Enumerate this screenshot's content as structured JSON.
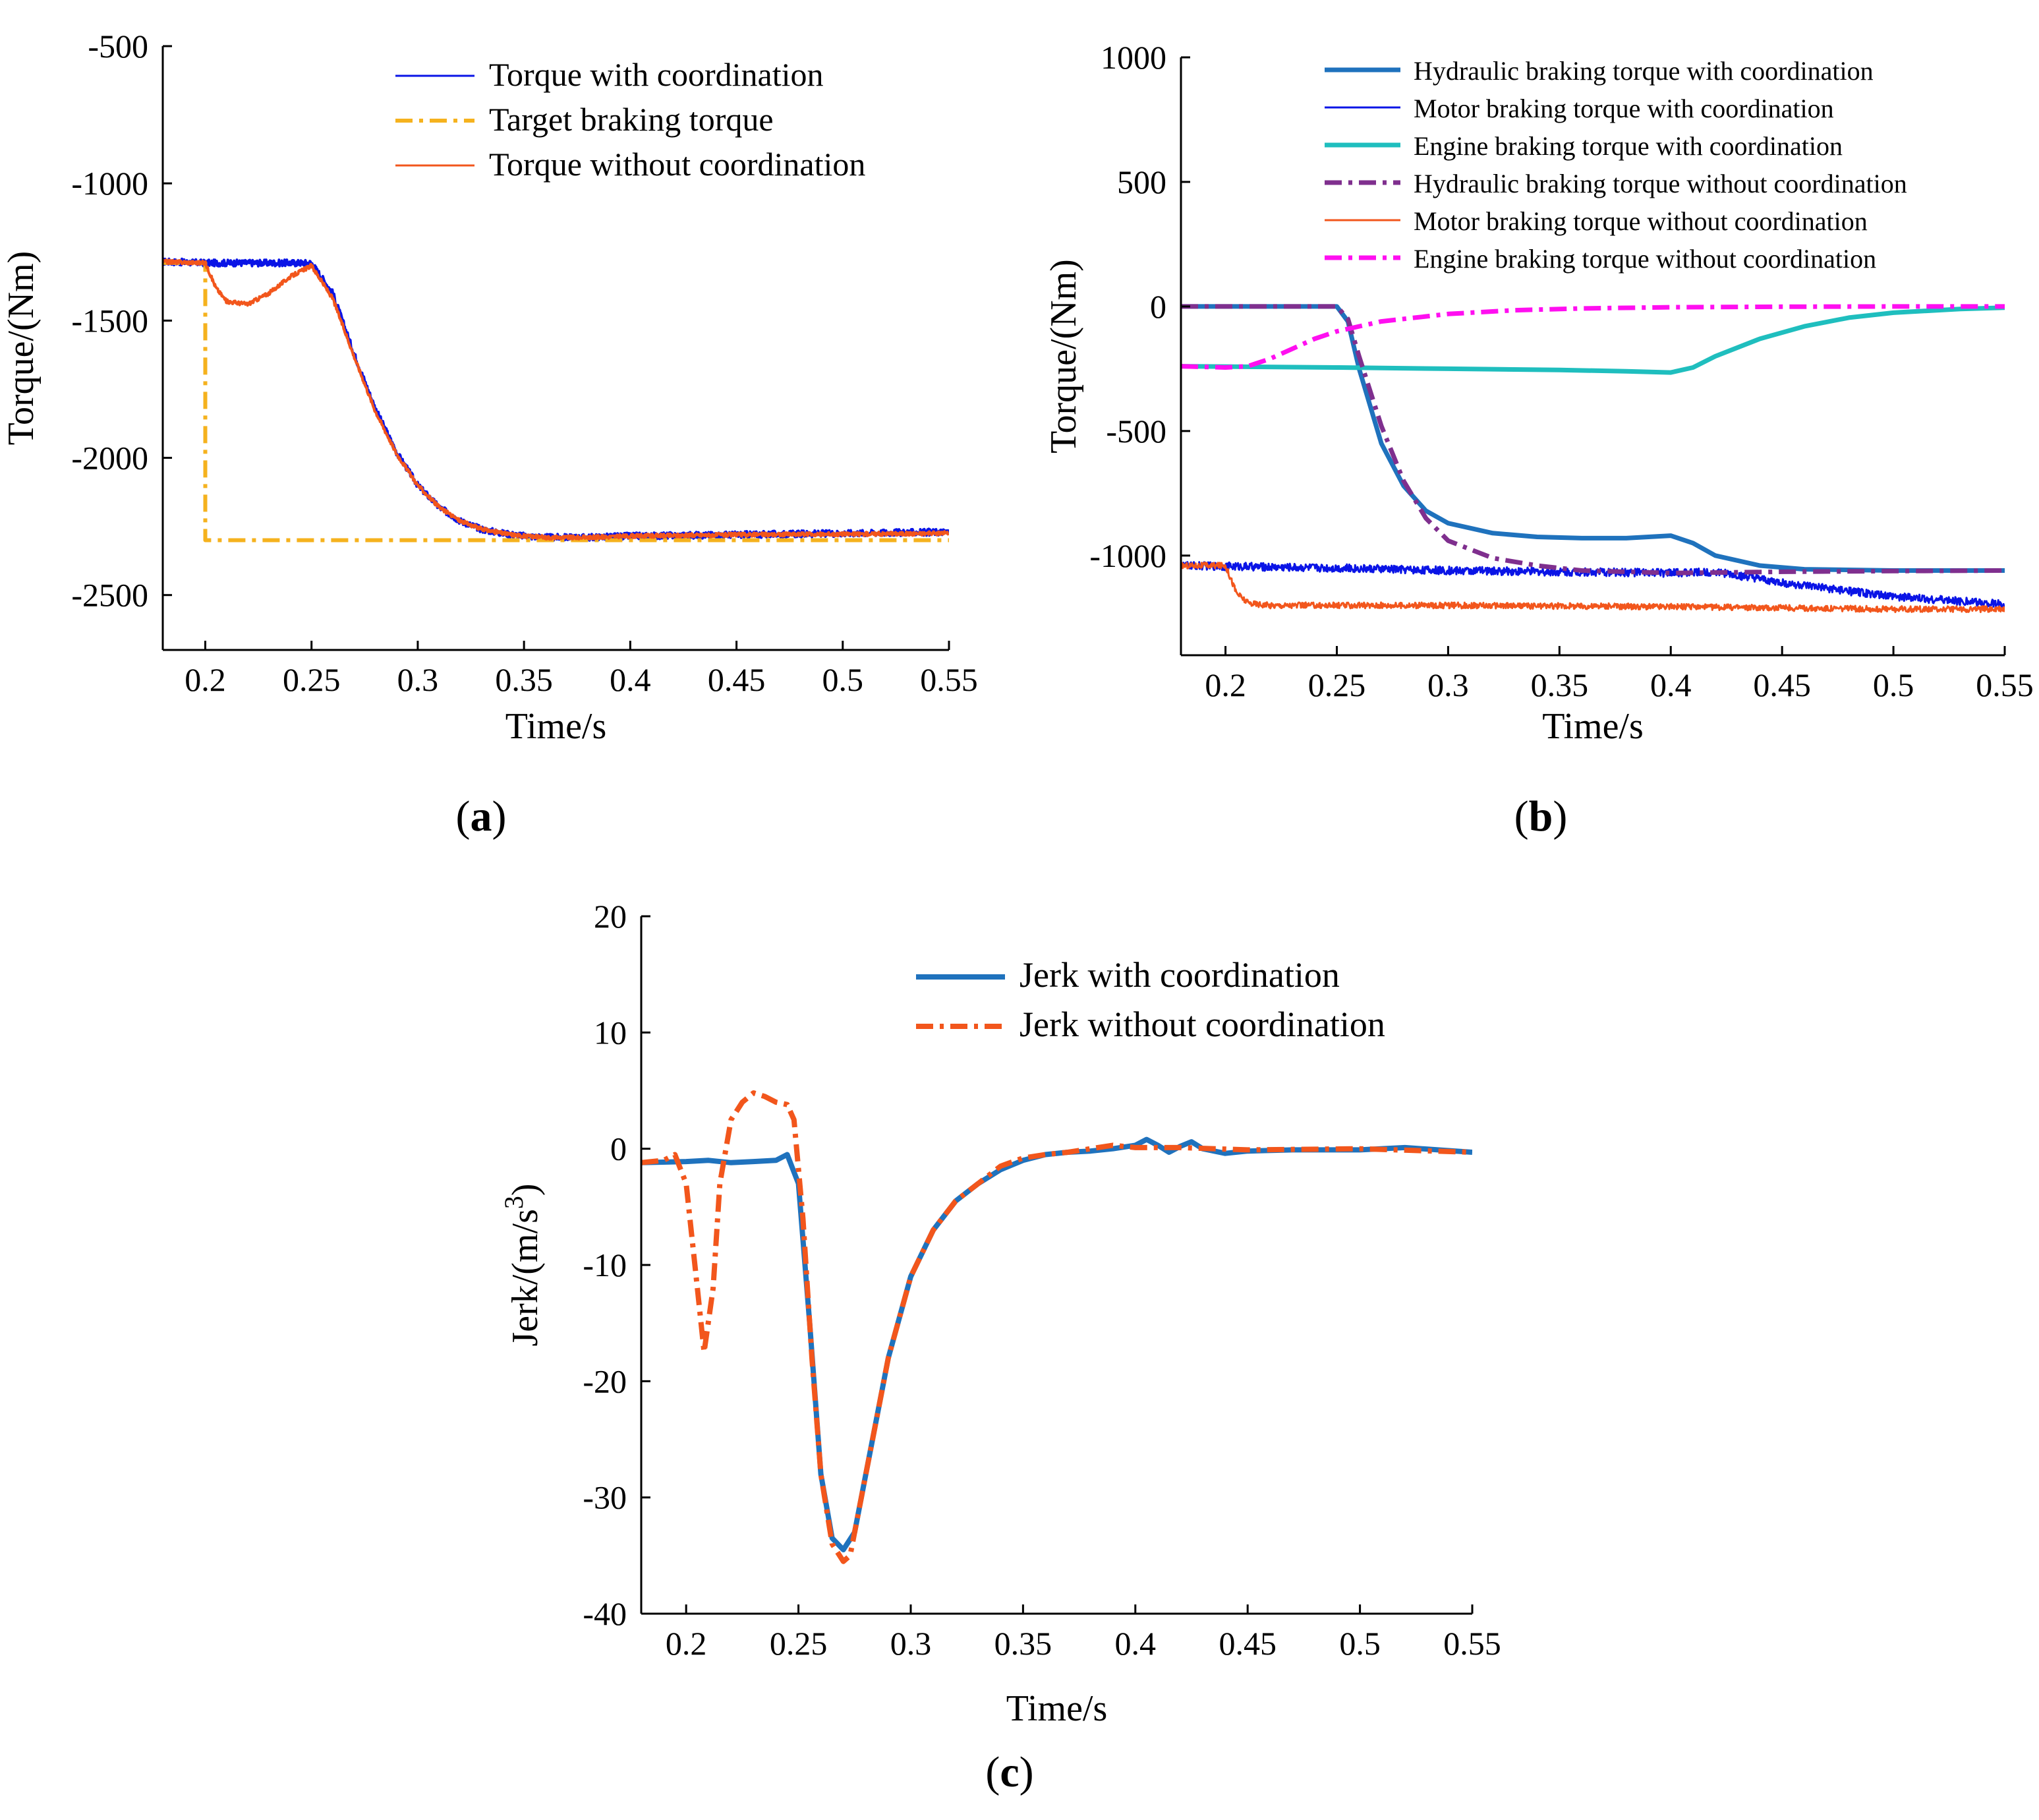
{
  "chart_data": [
    {
      "id": "a",
      "panel_label": "a",
      "type": "line",
      "xlabel": "Time/s",
      "ylabel": "Torque/(Nm)",
      "xlim": [
        0.18,
        0.55
      ],
      "ylim": [
        -2700,
        -500
      ],
      "xticks": [
        0.2,
        0.25,
        0.3,
        0.35,
        0.4,
        0.45,
        0.5,
        0.55
      ],
      "xtick_labels": [
        "0.2",
        "0.25",
        "0.3",
        "0.35",
        "0.4",
        "0.45",
        "0.5",
        "0.55"
      ],
      "yticks": [
        -2500,
        -2000,
        -1500,
        -1000,
        -500
      ],
      "ytick_labels": [
        "-2500",
        "-2000",
        "-1500",
        "-1000",
        "-500"
      ],
      "legend_position": "top-right",
      "series": [
        {
          "name": "Torque with coordination",
          "color": "#0a14e6",
          "style": "solid",
          "noise": 12,
          "x": [
            0.18,
            0.2,
            0.25,
            0.26,
            0.27,
            0.28,
            0.29,
            0.3,
            0.31,
            0.32,
            0.33,
            0.34,
            0.35,
            0.36,
            0.38,
            0.4,
            0.45,
            0.5,
            0.55
          ],
          "y": [
            -1285,
            -1290,
            -1290,
            -1400,
            -1620,
            -1820,
            -1980,
            -2100,
            -2180,
            -2230,
            -2260,
            -2275,
            -2285,
            -2290,
            -2290,
            -2285,
            -2280,
            -2275,
            -2270
          ]
        },
        {
          "name": "Target braking torque",
          "color": "#f5b21e",
          "style": "dashdot",
          "noise": 0,
          "x": [
            0.18,
            0.2,
            0.2,
            0.55
          ],
          "y": [
            -1290,
            -1290,
            -2300,
            -2300
          ]
        },
        {
          "name": "Torque without coordination",
          "color": "#f2561c",
          "style": "solid",
          "noise": 7,
          "x": [
            0.18,
            0.2,
            0.205,
            0.21,
            0.22,
            0.23,
            0.24,
            0.25,
            0.26,
            0.27,
            0.28,
            0.29,
            0.3,
            0.31,
            0.32,
            0.33,
            0.34,
            0.35,
            0.36,
            0.38,
            0.4,
            0.45,
            0.5,
            0.55
          ],
          "y": [
            -1285,
            -1290,
            -1380,
            -1430,
            -1440,
            -1400,
            -1340,
            -1300,
            -1420,
            -1630,
            -1830,
            -1985,
            -2100,
            -2180,
            -2230,
            -2260,
            -2275,
            -2285,
            -2290,
            -2290,
            -2285,
            -2280,
            -2278,
            -2275
          ]
        }
      ]
    },
    {
      "id": "b",
      "panel_label": "b",
      "type": "line",
      "xlabel": "Time/s",
      "ylabel": "Torque/(Nm)",
      "xlim": [
        0.18,
        0.55
      ],
      "ylim": [
        -1400,
        1000
      ],
      "xticks": [
        0.2,
        0.25,
        0.3,
        0.35,
        0.4,
        0.45,
        0.5,
        0.55
      ],
      "xtick_labels": [
        "0.2",
        "0.25",
        "0.3",
        "0.35",
        "0.4",
        "0.45",
        "0.5",
        "0.55"
      ],
      "yticks": [
        -1000,
        -500,
        0,
        500,
        1000
      ],
      "ytick_labels": [
        "-1000",
        "-500",
        "0",
        "500",
        "1000"
      ],
      "legend_position": "top-right",
      "series": [
        {
          "name": "Hydraulic braking torque with coordination",
          "color": "#1f72bd",
          "style": "solid",
          "width": 7,
          "noise": 0,
          "x": [
            0.18,
            0.25,
            0.255,
            0.26,
            0.27,
            0.28,
            0.29,
            0.3,
            0.32,
            0.34,
            0.36,
            0.38,
            0.4,
            0.41,
            0.42,
            0.44,
            0.46,
            0.5,
            0.55
          ],
          "y": [
            0,
            0,
            -60,
            -250,
            -550,
            -720,
            -820,
            -870,
            -910,
            -925,
            -930,
            -930,
            -920,
            -950,
            -1000,
            -1040,
            -1055,
            -1060,
            -1060
          ]
        },
        {
          "name": "Motor braking torque with coordination",
          "color": "#0a14e6",
          "style": "solid",
          "width": 3,
          "noise": 16,
          "x": [
            0.18,
            0.25,
            0.3,
            0.35,
            0.4,
            0.42,
            0.45,
            0.5,
            0.55
          ],
          "y": [
            -1040,
            -1050,
            -1060,
            -1065,
            -1070,
            -1065,
            -1110,
            -1165,
            -1195
          ]
        },
        {
          "name": "Engine braking torque with coordination",
          "color": "#1fbebe",
          "style": "solid",
          "width": 7,
          "noise": 0,
          "x": [
            0.18,
            0.25,
            0.3,
            0.35,
            0.38,
            0.4,
            0.41,
            0.42,
            0.44,
            0.46,
            0.48,
            0.5,
            0.53,
            0.55
          ],
          "y": [
            -240,
            -245,
            -250,
            -255,
            -260,
            -265,
            -245,
            -200,
            -130,
            -80,
            -45,
            -25,
            -10,
            -5
          ]
        },
        {
          "name": "Hydraulic braking torque without coordination",
          "color": "#7f2f8e",
          "style": "dashdot",
          "width": 7,
          "noise": 0,
          "x": [
            0.18,
            0.25,
            0.255,
            0.26,
            0.27,
            0.28,
            0.29,
            0.3,
            0.32,
            0.34,
            0.36,
            0.4,
            0.45,
            0.5,
            0.55
          ],
          "y": [
            0,
            0,
            -50,
            -200,
            -480,
            -700,
            -850,
            -940,
            -1010,
            -1040,
            -1060,
            -1070,
            -1065,
            -1062,
            -1060
          ]
        },
        {
          "name": "Motor braking torque without coordination",
          "color": "#f2561c",
          "style": "solid",
          "width": 3,
          "noise": 12,
          "x": [
            0.18,
            0.2,
            0.205,
            0.21,
            0.22,
            0.3,
            0.4,
            0.45,
            0.5,
            0.55
          ],
          "y": [
            -1040,
            -1040,
            -1150,
            -1190,
            -1200,
            -1200,
            -1205,
            -1210,
            -1215,
            -1215
          ]
        },
        {
          "name": "Engine braking torque without coordination",
          "color": "#ff0ff0",
          "style": "dashdot",
          "width": 7,
          "noise": 0,
          "x": [
            0.18,
            0.2,
            0.21,
            0.22,
            0.23,
            0.24,
            0.25,
            0.27,
            0.3,
            0.33,
            0.36,
            0.4,
            0.45,
            0.5,
            0.55
          ],
          "y": [
            -240,
            -245,
            -240,
            -210,
            -170,
            -130,
            -100,
            -60,
            -30,
            -15,
            -8,
            -3,
            -1,
            0,
            0
          ]
        }
      ]
    },
    {
      "id": "c",
      "panel_label": "c",
      "type": "line",
      "xlabel": "Time/s",
      "ylabel": "Jerk/(m/s",
      "ylabel_superscript": "3",
      "ylabel_suffix": ")",
      "xlim": [
        0.18,
        0.55
      ],
      "ylim": [
        -40,
        20
      ],
      "xticks": [
        0.2,
        0.25,
        0.3,
        0.35,
        0.4,
        0.45,
        0.5,
        0.55
      ],
      "xtick_labels": [
        "0.2",
        "0.25",
        "0.3",
        "0.35",
        "0.4",
        "0.45",
        "0.5",
        "0.55"
      ],
      "yticks": [
        -40,
        -30,
        -20,
        -10,
        0,
        10,
        20
      ],
      "ytick_labels": [
        "-40",
        "-30",
        "-20",
        "-10",
        "0",
        "10",
        "20"
      ],
      "legend_position": "top-right",
      "series": [
        {
          "name": "Jerk with coordination",
          "color": "#1f72bd",
          "style": "solid",
          "width": 8,
          "noise": 0,
          "x": [
            0.18,
            0.2,
            0.21,
            0.22,
            0.23,
            0.24,
            0.245,
            0.25,
            0.255,
            0.26,
            0.265,
            0.27,
            0.275,
            0.28,
            0.29,
            0.3,
            0.31,
            0.32,
            0.33,
            0.34,
            0.35,
            0.36,
            0.37,
            0.38,
            0.39,
            0.4,
            0.405,
            0.41,
            0.415,
            0.42,
            0.425,
            0.43,
            0.44,
            0.45,
            0.47,
            0.5,
            0.52,
            0.55
          ],
          "y": [
            -1.2,
            -1.1,
            -1.0,
            -1.2,
            -1.1,
            -1.0,
            -0.5,
            -3,
            -15,
            -28,
            -33.5,
            -34.5,
            -33,
            -28,
            -18,
            -11,
            -7,
            -4.5,
            -3,
            -1.8,
            -1.0,
            -0.5,
            -0.3,
            -0.2,
            0,
            0.3,
            0.8,
            0.3,
            -0.3,
            0.2,
            0.6,
            0,
            -0.4,
            -0.2,
            -0.1,
            -0.1,
            0.1,
            -0.3
          ]
        },
        {
          "name": "Jerk without coordination",
          "color": "#f2561c",
          "style": "dashdot",
          "width": 8,
          "noise": 0,
          "x": [
            0.18,
            0.19,
            0.195,
            0.2,
            0.205,
            0.208,
            0.212,
            0.215,
            0.22,
            0.225,
            0.23,
            0.235,
            0.24,
            0.245,
            0.248,
            0.252,
            0.256,
            0.26,
            0.265,
            0.27,
            0.273,
            0.278,
            0.285,
            0.29,
            0.3,
            0.31,
            0.32,
            0.33,
            0.34,
            0.35,
            0.36,
            0.37,
            0.38,
            0.39,
            0.4,
            0.42,
            0.45,
            0.5,
            0.55
          ],
          "y": [
            -1.2,
            -1.0,
            -0.5,
            -3,
            -12,
            -17.5,
            -12,
            -3,
            2.5,
            4,
            4.8,
            4.5,
            4,
            3.8,
            2.5,
            -6,
            -18,
            -28,
            -34,
            -35.5,
            -35,
            -30,
            -23,
            -18,
            -11,
            -7,
            -4.5,
            -3,
            -1.5,
            -0.8,
            -0.5,
            -0.3,
            0,
            0.3,
            0.1,
            0.1,
            -0.1,
            0,
            -0.3
          ]
        }
      ]
    }
  ]
}
